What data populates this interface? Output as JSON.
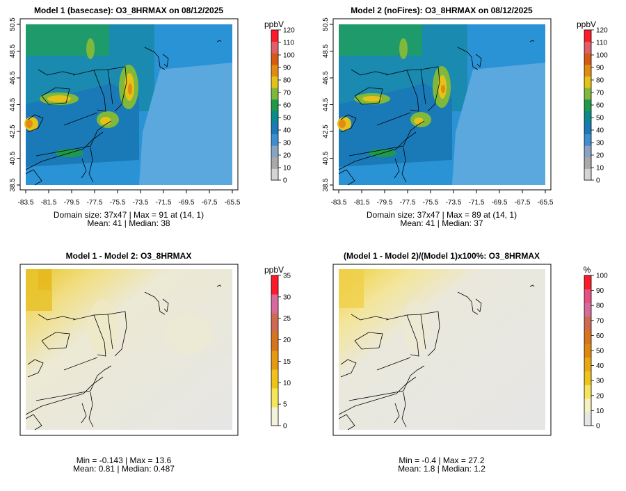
{
  "chart_data": [
    {
      "type": "heatmap",
      "title": "Model 1 (basecase): O3_8HRMAX on 08/12/2025",
      "xticks": [
        "-83.5",
        "-81.5",
        "-79.5",
        "-77.5",
        "-75.5",
        "-73.5",
        "-71.5",
        "-69.5",
        "-67.5",
        "-65.5"
      ],
      "yticks": [
        "38.5",
        "40.5",
        "42.5",
        "44.5",
        "46.5",
        "48.5",
        "50.5"
      ],
      "colorbar": {
        "unit": "ppbV",
        "min": 0,
        "max": 120,
        "ticks": [
          "0",
          "10",
          "20",
          "30",
          "40",
          "50",
          "60",
          "70",
          "80",
          "90",
          "100",
          "110",
          "120"
        ],
        "colors": [
          "#d4d4d4",
          "#a9a9a9",
          "#8aa3c2",
          "#3f8fd0",
          "#1a7ab8",
          "#0a8a8a",
          "#1f9a4a",
          "#7fb83a",
          "#e3c21a",
          "#e28a12",
          "#d75a14",
          "#e0606a",
          "#ff1a2a"
        ]
      },
      "grid_size": "37x47",
      "max": 91,
      "max_location": "(14, 1)",
      "mean": 41,
      "median": 38,
      "stats_line1": "Domain size: 37x47 | Max = 91 at (14, 1)",
      "stats_line2": "Mean: 41 |  Median: 38"
    },
    {
      "type": "heatmap",
      "title": "Model 2 (noFires): O3_8HRMAX on 08/12/2025",
      "xticks": [
        "-83.5",
        "-81.5",
        "-79.5",
        "-77.5",
        "-75.5",
        "-73.5",
        "-71.5",
        "-69.5",
        "-67.5",
        "-65.5"
      ],
      "yticks": [
        "38.5",
        "40.5",
        "42.5",
        "44.5",
        "46.5",
        "48.5",
        "50.5"
      ],
      "colorbar": {
        "unit": "ppbV",
        "min": 0,
        "max": 120,
        "ticks": [
          "0",
          "10",
          "20",
          "30",
          "40",
          "50",
          "60",
          "70",
          "80",
          "90",
          "100",
          "110",
          "120"
        ],
        "colors": [
          "#d4d4d4",
          "#a9a9a9",
          "#8aa3c2",
          "#3f8fd0",
          "#1a7ab8",
          "#0a8a8a",
          "#1f9a4a",
          "#7fb83a",
          "#e3c21a",
          "#e28a12",
          "#d75a14",
          "#e0606a",
          "#ff1a2a"
        ]
      },
      "grid_size": "37x47",
      "max": 89,
      "max_location": "(14, 1)",
      "mean": 41,
      "median": 37,
      "stats_line1": "Domain size: 37x47 | Max = 89 at (14, 1)",
      "stats_line2": "Mean: 41 |  Median: 37"
    },
    {
      "type": "heatmap",
      "title": "Model 1 - Model 2: O3_8HRMAX",
      "colorbar": {
        "unit": "ppbV",
        "min": 0,
        "max": 35,
        "ticks": [
          "0",
          "5",
          "10",
          "15",
          "20",
          "25",
          "30",
          "35"
        ],
        "colors": [
          "#f5f2dc",
          "#f5e55a",
          "#f0c21a",
          "#e59a12",
          "#d8741c",
          "#cf6a50",
          "#d86a9a",
          "#ff1a2a"
        ]
      },
      "min": -0.143,
      "max": 13.6,
      "mean": 0.81,
      "median": 0.487,
      "stats_line1": "Min = -0.143 | Max = 13.6",
      "stats_line2": "Mean: 0.81 |  Median: 0.487"
    },
    {
      "type": "heatmap",
      "title": "(Model 1 - Model 2)/(Model 1)x100%: O3_8HRMAX",
      "colorbar": {
        "unit": "%",
        "min": 0,
        "max": 100,
        "ticks": [
          "0",
          "10",
          "20",
          "30",
          "40",
          "50",
          "60",
          "70",
          "80",
          "90",
          "100"
        ],
        "colors": [
          "#e6e6e6",
          "#f5f0c0",
          "#f5e55a",
          "#f0c21a",
          "#e8a812",
          "#e0880e",
          "#d8741c",
          "#cf6a50",
          "#d86a9a",
          "#e85080",
          "#ff1a2a"
        ]
      },
      "min": -0.4,
      "max": 27.2,
      "mean": 1.8,
      "median": 1.2,
      "stats_line1": "Min = -0.4 | Max = 27.2",
      "stats_line2": "Mean: 1.8 |  Median: 1.2"
    }
  ]
}
